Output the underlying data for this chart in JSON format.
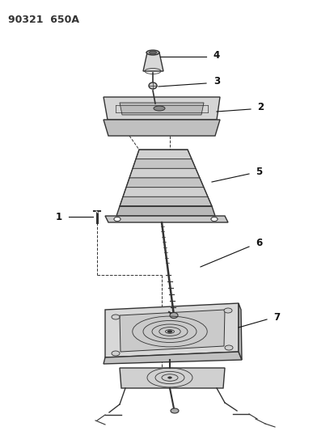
{
  "title": "90321  650A",
  "bg_color": "#ffffff",
  "line_color": "#333333",
  "label_color": "#111111",
  "fig_width": 4.14,
  "fig_height": 5.33,
  "dpi": 100,
  "label_fs": 8.5
}
